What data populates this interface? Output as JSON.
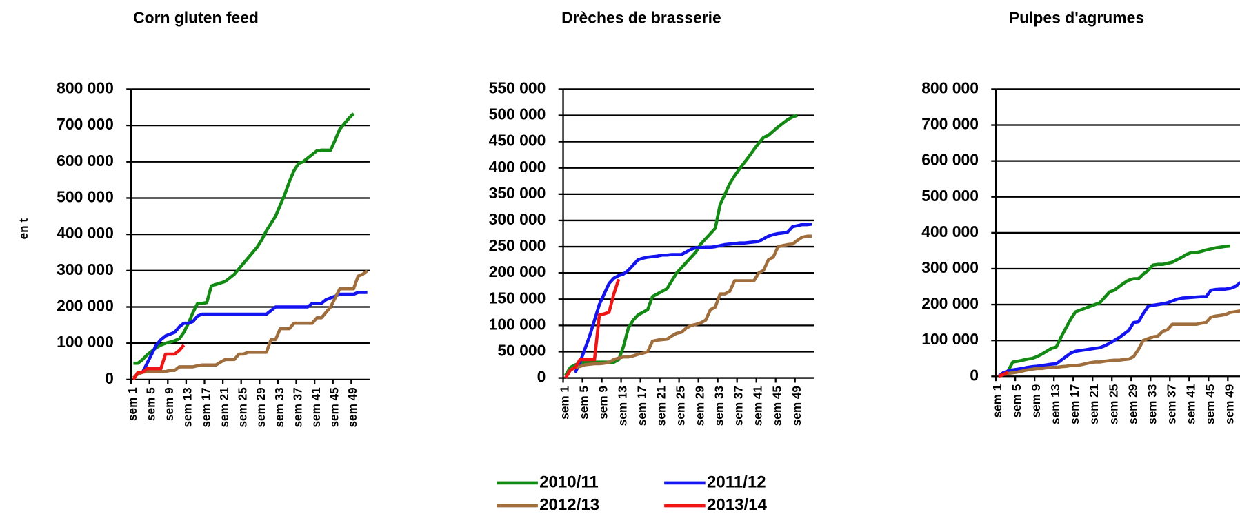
{
  "chart_data": [
    {
      "type": "line",
      "title": "Corn gluten feed",
      "y_label": "en t",
      "categories": [
        "sem 1",
        null,
        null,
        null,
        "sem 5",
        null,
        null,
        null,
        "sem 9",
        null,
        null,
        null,
        "sem 13",
        null,
        null,
        null,
        "sem 17",
        null,
        null,
        null,
        "sem 21",
        null,
        null,
        null,
        "sem 25",
        null,
        null,
        null,
        "sem 29",
        null,
        null,
        null,
        "sem 33",
        null,
        null,
        null,
        "sem 37",
        null,
        null,
        null,
        "sem 41",
        null,
        null,
        null,
        "sem 45",
        null,
        null,
        null,
        "sem 49",
        null,
        null,
        null
      ],
      "ylim": [
        0,
        800000
      ],
      "yticks": [
        0,
        {
          "value": 100000,
          "label": "100 000"
        },
        {
          "value": 200000,
          "label": "200 000"
        },
        {
          "value": 300000,
          "label": "300 000"
        },
        {
          "value": 400000,
          "label": "400 000"
        },
        {
          "value": 500000,
          "label": "500 000"
        },
        {
          "value": 600000,
          "label": "600 000"
        },
        {
          "value": 700000,
          "label": "700 000"
        },
        {
          "value": 800000,
          "label": "800 000"
        }
      ],
      "grid": true,
      "series": [
        {
          "name": "2010/11",
          "color": "#138a13",
          "values": [
            45000,
            45000,
            55000,
            68000,
            78000,
            88000,
            95000,
            100000,
            103000,
            107000,
            112000,
            130000,
            155000,
            185000,
            210000,
            210000,
            212000,
            258000,
            262000,
            266000,
            270000,
            280000,
            290000,
            305000,
            320000,
            335000,
            350000,
            365000,
            385000,
            410000,
            430000,
            450000,
            480000,
            510000,
            545000,
            575000,
            595000,
            600000,
            610000,
            620000,
            630000,
            632000,
            632000,
            632000,
            660000,
            690000,
            705000,
            720000,
            733000,
            null,
            null,
            null
          ]
        },
        {
          "name": "2011/12",
          "color": "#1414f0",
          "values": [
            null,
            null,
            20000,
            45000,
            70000,
            95000,
            110000,
            120000,
            125000,
            130000,
            145000,
            155000,
            155000,
            160000,
            175000,
            180000,
            180000,
            180000,
            180000,
            180000,
            180000,
            180000,
            180000,
            180000,
            180000,
            180000,
            180000,
            180000,
            180000,
            180000,
            190000,
            200000,
            200000,
            200000,
            200000,
            200000,
            200000,
            200000,
            200000,
            210000,
            210000,
            210000,
            220000,
            225000,
            230000,
            235000,
            235000,
            235000,
            235000,
            240000,
            240000,
            240000
          ]
        },
        {
          "name": "2012/13",
          "color": "#a06e3c",
          "values": [
            5000,
            15000,
            20000,
            22000,
            22000,
            22000,
            22000,
            22000,
            25000,
            25000,
            35000,
            35000,
            35000,
            35000,
            38000,
            40000,
            40000,
            40000,
            40000,
            48000,
            55000,
            55000,
            55000,
            70000,
            70000,
            75000,
            75000,
            75000,
            75000,
            75000,
            110000,
            110000,
            140000,
            140000,
            140000,
            155000,
            155000,
            155000,
            155000,
            155000,
            170000,
            170000,
            185000,
            200000,
            225000,
            250000,
            250000,
            250000,
            250000,
            285000,
            290000,
            300000
          ]
        },
        {
          "name": "2013/14",
          "color": "#f01414",
          "values": [
            0,
            20000,
            20000,
            30000,
            30000,
            30000,
            30000,
            70000,
            70000,
            70000,
            80000,
            95000,
            null,
            null,
            null,
            null,
            null,
            null,
            null,
            null,
            null,
            null,
            null,
            null,
            null,
            null,
            null,
            null,
            null,
            null,
            null,
            null,
            null,
            null,
            null,
            null,
            null,
            null,
            null,
            null,
            null,
            null,
            null,
            null,
            null,
            null,
            null,
            null,
            null,
            null,
            null,
            null
          ]
        }
      ]
    },
    {
      "type": "line",
      "title": "Drèches de brasserie",
      "categories": [
        "sem 1",
        null,
        null,
        null,
        "sem 5",
        null,
        null,
        null,
        "sem 9",
        null,
        null,
        null,
        "sem 13",
        null,
        null,
        null,
        "sem 17",
        null,
        null,
        null,
        "sem 21",
        null,
        null,
        null,
        "sem 25",
        null,
        null,
        null,
        "sem 29",
        null,
        null,
        null,
        "sem 33",
        null,
        null,
        null,
        "sem 37",
        null,
        null,
        null,
        "sem 41",
        null,
        null,
        null,
        "sem 45",
        null,
        null,
        null,
        "sem 49",
        null,
        null,
        null
      ],
      "ylim": [
        0,
        550000
      ],
      "yticks": [
        0,
        {
          "value": 50000,
          "label": "50 000"
        },
        {
          "value": 100000,
          "label": "100 000"
        },
        {
          "value": 150000,
          "label": "150 000"
        },
        {
          "value": 200000,
          "label": "200 000"
        },
        {
          "value": 250000,
          "label": "250 000"
        },
        {
          "value": 300000,
          "label": "300 000"
        },
        {
          "value": 350000,
          "label": "350 000"
        },
        {
          "value": 400000,
          "label": "400 000"
        },
        {
          "value": 450000,
          "label": "450 000"
        },
        {
          "value": 500000,
          "label": "500 000"
        },
        {
          "value": 550000,
          "label": "550 000"
        }
      ],
      "grid": true,
      "series": [
        {
          "name": "2010/11",
          "color": "#138a13",
          "values": [
            5000,
            20000,
            25000,
            28000,
            30000,
            30000,
            30000,
            30000,
            30000,
            30000,
            30000,
            35000,
            60000,
            95000,
            110000,
            120000,
            125000,
            130000,
            155000,
            160000,
            165000,
            170000,
            185000,
            200000,
            210000,
            220000,
            230000,
            240000,
            255000,
            265000,
            275000,
            285000,
            330000,
            350000,
            370000,
            385000,
            398000,
            410000,
            422000,
            435000,
            447000,
            458000,
            462000,
            470000,
            478000,
            485000,
            492000,
            497000,
            500000,
            null,
            null,
            null
          ]
        },
        {
          "name": "2011/12",
          "color": "#1414f0",
          "values": [
            null,
            null,
            10000,
            30000,
            55000,
            80000,
            110000,
            140000,
            160000,
            180000,
            190000,
            195000,
            198000,
            205000,
            215000,
            225000,
            228000,
            230000,
            231000,
            232000,
            234000,
            234000,
            235000,
            235000,
            235000,
            240000,
            245000,
            248000,
            248000,
            249000,
            249000,
            250000,
            252000,
            254000,
            255000,
            256000,
            257000,
            257000,
            258000,
            259000,
            260000,
            265000,
            270000,
            273000,
            275000,
            276000,
            278000,
            288000,
            290000,
            292000,
            292000,
            293000
          ]
        },
        {
          "name": "2012/13",
          "color": "#a06e3c",
          "values": [
            0,
            15000,
            20000,
            22000,
            25000,
            26000,
            27000,
            27000,
            28000,
            30000,
            35000,
            38000,
            40000,
            40000,
            42000,
            45000,
            47000,
            50000,
            70000,
            72000,
            73000,
            74000,
            80000,
            85000,
            87000,
            95000,
            100000,
            102000,
            105000,
            110000,
            130000,
            135000,
            160000,
            160000,
            165000,
            185000,
            185000,
            185000,
            185000,
            185000,
            200000,
            205000,
            225000,
            230000,
            250000,
            252000,
            254000,
            255000,
            262000,
            268000,
            270000,
            270000
          ]
        },
        {
          "name": "2013/14",
          "color": "#f01414",
          "values": [
            0,
            15000,
            20000,
            35000,
            35000,
            35000,
            35000,
            120000,
            122000,
            125000,
            160000,
            188000,
            null,
            null,
            null,
            null,
            null,
            null,
            null,
            null,
            null,
            null,
            null,
            null,
            null,
            null,
            null,
            null,
            null,
            null,
            null,
            null,
            null,
            null,
            null,
            null,
            null,
            null,
            null,
            null,
            null,
            null,
            null,
            null,
            null,
            null,
            null,
            null,
            null,
            null,
            null,
            null
          ]
        }
      ]
    },
    {
      "type": "line",
      "title": "Pulpes d'agrumes",
      "categories": [
        "sem 1",
        null,
        null,
        null,
        "sem 5",
        null,
        null,
        null,
        "sem 9",
        null,
        null,
        null,
        "sem 13",
        null,
        null,
        null,
        "sem 17",
        null,
        null,
        null,
        "sem 21",
        null,
        null,
        null,
        "sem 25",
        null,
        null,
        null,
        "sem 29",
        null,
        null,
        null,
        "sem 33",
        null,
        null,
        null,
        "sem 37",
        null,
        null,
        null,
        "sem 41",
        null,
        null,
        null,
        "sem 45",
        null,
        null,
        null,
        "sem 49",
        null,
        null,
        null
      ],
      "ylim": [
        0,
        800000
      ],
      "yticks": [
        0,
        {
          "value": 100000,
          "label": "100 000"
        },
        {
          "value": 200000,
          "label": "200 000"
        },
        {
          "value": 300000,
          "label": "300 000"
        },
        {
          "value": 400000,
          "label": "400 000"
        },
        {
          "value": 500000,
          "label": "500 000"
        },
        {
          "value": 600000,
          "label": "600 000"
        },
        {
          "value": 700000,
          "label": "700 000"
        },
        {
          "value": 800000,
          "label": "800 000"
        }
      ],
      "grid": true,
      "series": [
        {
          "name": "2010/11",
          "color": "#138a13",
          "values": [
            0,
            5000,
            15000,
            40000,
            42000,
            45000,
            48000,
            50000,
            55000,
            62000,
            70000,
            78000,
            82000,
            110000,
            135000,
            160000,
            180000,
            185000,
            190000,
            195000,
            200000,
            205000,
            220000,
            235000,
            240000,
            250000,
            260000,
            268000,
            272000,
            272000,
            285000,
            295000,
            310000,
            312000,
            312000,
            315000,
            318000,
            325000,
            332000,
            340000,
            345000,
            345000,
            348000,
            352000,
            355000,
            358000,
            360000,
            362000,
            363000,
            null,
            null,
            null
          ]
        },
        {
          "name": "2011/12",
          "color": "#1414f0",
          "values": [
            0,
            10000,
            15000,
            18000,
            20000,
            22000,
            25000,
            27000,
            28000,
            30000,
            32000,
            34000,
            35000,
            45000,
            55000,
            65000,
            70000,
            72000,
            74000,
            76000,
            78000,
            80000,
            85000,
            92000,
            100000,
            108000,
            118000,
            128000,
            150000,
            152000,
            175000,
            195000,
            198000,
            200000,
            202000,
            205000,
            210000,
            215000,
            218000,
            219000,
            220000,
            221000,
            222000,
            222000,
            240000,
            242000,
            243000,
            243000,
            245000,
            250000,
            260000,
            262000
          ]
        },
        {
          "name": "2012/13",
          "color": "#a06e3c",
          "values": [
            0,
            5000,
            8000,
            10000,
            12000,
            15000,
            18000,
            20000,
            22000,
            22000,
            24000,
            25000,
            25000,
            27000,
            28000,
            30000,
            30000,
            32000,
            35000,
            38000,
            40000,
            40000,
            42000,
            44000,
            45000,
            45000,
            47000,
            48000,
            55000,
            75000,
            100000,
            105000,
            110000,
            112000,
            125000,
            130000,
            145000,
            145000,
            145000,
            145000,
            145000,
            145000,
            148000,
            150000,
            165000,
            168000,
            170000,
            172000,
            178000,
            180000,
            182000,
            185000
          ]
        },
        {
          "name": "2013/14",
          "color": "#f01414",
          "values": [
            0,
            5000,
            12000,
            null,
            null,
            null,
            null,
            null,
            null,
            null,
            null,
            null,
            null,
            null,
            null,
            null,
            null,
            null,
            null,
            null,
            null,
            null,
            null,
            null,
            null,
            null,
            null,
            null,
            null,
            null,
            null,
            null,
            null,
            null,
            null,
            null,
            null,
            null,
            null,
            null,
            null,
            null,
            null,
            null,
            null,
            null,
            null,
            null,
            null,
            null,
            null,
            null
          ]
        }
      ]
    }
  ]
}
